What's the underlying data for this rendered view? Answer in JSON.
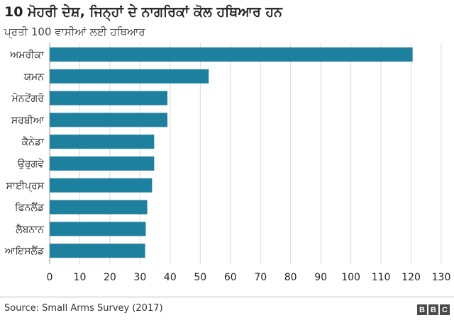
{
  "header": {
    "title": "10 ਮੋਹਰੀ ਦੇਸ਼, ਜਿਨ੍ਹਾਂ ਦੇ ਨਾਗਰਿਕਾਂ ਕੋਲ ਹਥਿਆਰ ਹਨ",
    "subtitle": "ਪ੍ਰਤੀ 100 ਵਾਸੀਆਂ ਲਈ ਹਥਿਆਰ"
  },
  "footer": {
    "source": "Source: Small Arms Survey (2017)",
    "logo_letters": [
      "B",
      "B",
      "C"
    ]
  },
  "colors": {
    "bar": "#1d809f",
    "gridline": "#d9d9d9",
    "text": "#222222"
  },
  "chart_data": {
    "type": "bar",
    "orientation": "horizontal",
    "categories": [
      "ਅਮਰੀਕਾ",
      "ਯਮਨ",
      "ਮੋਨਟੇਂਗਰੋ",
      "ਸਰਬੀਆ",
      "ਕੈਨੇਡਾ",
      "ਉਰੁਗਵੇ",
      "ਸਾਈਪ੍ਰਸ",
      "ਫਿਨਲੈਂਡ",
      "ਲੈਬਨਾਨ",
      "ਆਇਸਲੈਂਡ"
    ],
    "values": [
      120.5,
      52.8,
      39.1,
      39.1,
      34.7,
      34.7,
      34.0,
      32.4,
      31.9,
      31.7
    ],
    "xticks": [
      0,
      10,
      20,
      30,
      40,
      50,
      60,
      70,
      80,
      90,
      100,
      110,
      120,
      130
    ],
    "xlim": [
      0,
      130
    ],
    "grid": true
  }
}
